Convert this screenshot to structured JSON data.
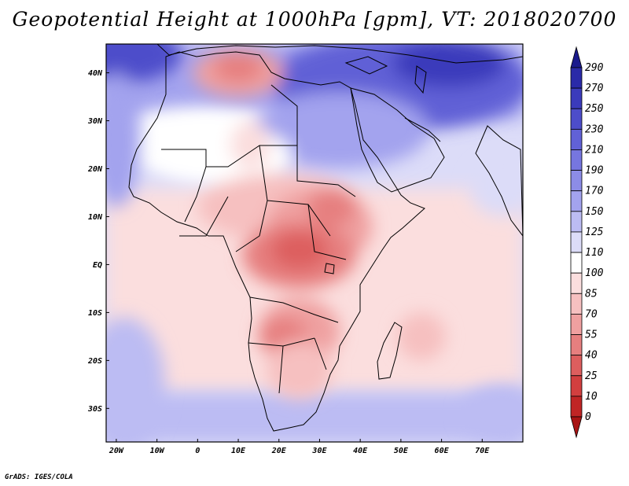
{
  "title": "Geopotential Height at 1000hPa [gpm], VT: 2018020700",
  "credit": "GrADS: IGES/COLA",
  "axes": {
    "x_ticks": [
      "20W",
      "10W",
      "0",
      "10E",
      "20E",
      "30E",
      "40E",
      "50E",
      "60E",
      "70E"
    ],
    "x_values": [
      -20,
      -10,
      0,
      10,
      20,
      30,
      40,
      50,
      60,
      70
    ],
    "y_ticks": [
      "40N",
      "30N",
      "20N",
      "10N",
      "EQ",
      "10S",
      "20S",
      "30S"
    ],
    "y_values": [
      40,
      30,
      20,
      10,
      0,
      -10,
      -20,
      -30
    ],
    "lon_range": [
      -22.5,
      80
    ],
    "lat_range": [
      -37,
      46
    ]
  },
  "colorbar": {
    "levels": [
      "290",
      "270",
      "250",
      "230",
      "210",
      "190",
      "170",
      "150",
      "125",
      "110",
      "100",
      "85",
      "70",
      "55",
      "40",
      "25",
      "10",
      "0"
    ],
    "colors": [
      "#1a1a8c",
      "#2a2aa8",
      "#3b3bbb",
      "#4d4dca",
      "#6161d6",
      "#7676df",
      "#8c8ce7",
      "#a3a3ee",
      "#bcbcf3",
      "#dcdcf8",
      "#ffffff",
      "#fbdede",
      "#f6c0c0",
      "#efa0a0",
      "#e67f7f",
      "#dd5e5e",
      "#d23f3f",
      "#c02525",
      "#a81414"
    ]
  },
  "field_blobs": [
    {
      "lon": -18,
      "lat": 44,
      "rx": 14,
      "ry": 6,
      "color": "#4d4dca"
    },
    {
      "lon": 50,
      "lat": 38,
      "rx": 32,
      "ry": 10,
      "color": "#6161d6"
    },
    {
      "lon": 62,
      "lat": 42,
      "rx": 14,
      "ry": 5,
      "color": "#3b3bbb"
    },
    {
      "lon": 35,
      "lat": 28,
      "rx": 22,
      "ry": 8,
      "color": "#a3a3ee"
    },
    {
      "lon": -20,
      "lat": 26,
      "rx": 6,
      "ry": 14,
      "color": "#a3a3ee"
    },
    {
      "lon": 5,
      "lat": 23,
      "rx": 18,
      "ry": 6,
      "color": "#ffffff"
    },
    {
      "lon": 10,
      "lat": 40,
      "rx": 11,
      "ry": 5,
      "color": "#efa0a0"
    },
    {
      "lon": 10,
      "lat": 41,
      "rx": 6,
      "ry": 3,
      "color": "#e67f7f"
    },
    {
      "lon": 13,
      "lat": 25,
      "rx": 5,
      "ry": 5,
      "color": "#fbdede"
    },
    {
      "lon": 20,
      "lat": 12,
      "rx": 20,
      "ry": 7,
      "color": "#f6c0c0"
    },
    {
      "lon": 30,
      "lat": 8,
      "rx": 13,
      "ry": 8,
      "color": "#efa0a0"
    },
    {
      "lon": 33,
      "lat": 12,
      "rx": 6,
      "ry": 4,
      "color": "#e67f7f"
    },
    {
      "lon": 25,
      "lat": 2,
      "rx": 14,
      "ry": 7,
      "color": "#e67f7f"
    },
    {
      "lon": 25,
      "lat": 3,
      "rx": 7,
      "ry": 4,
      "color": "#dd5e5e"
    },
    {
      "lon": 25,
      "lat": -14,
      "rx": 10,
      "ry": 7,
      "color": "#efa0a0"
    },
    {
      "lon": 21,
      "lat": -15,
      "rx": 6,
      "ry": 4,
      "color": "#e67f7f"
    },
    {
      "lon": 25,
      "lat": -22,
      "rx": 8,
      "ry": 6,
      "color": "#f6c0c0"
    },
    {
      "lon": 55,
      "lat": -15,
      "rx": 6,
      "ry": 5,
      "color": "#f6c0c0"
    },
    {
      "lon": -18,
      "lat": -25,
      "rx": 10,
      "ry": 14,
      "color": "#bcbcf3"
    },
    {
      "lon": 75,
      "lat": -31,
      "rx": 10,
      "ry": 6,
      "color": "#bcbcf3"
    },
    {
      "lon": 75,
      "lat": 16,
      "rx": 8,
      "ry": 6,
      "color": "#dcdcf8"
    }
  ]
}
